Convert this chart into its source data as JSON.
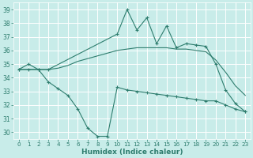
{
  "xlabel": "Humidex (Indice chaleur)",
  "background_color": "#c8ece9",
  "grid_color": "#ffffff",
  "line_color": "#2e7d6e",
  "x_all": [
    0,
    1,
    2,
    3,
    4,
    5,
    6,
    7,
    8,
    9,
    10,
    11,
    12,
    13,
    14,
    15,
    16,
    17,
    18,
    19,
    20,
    21,
    22,
    23
  ],
  "line_max_x": [
    0,
    1,
    2,
    3,
    10,
    11,
    12,
    13,
    14,
    15,
    16,
    17,
    18,
    19,
    20,
    21,
    22,
    23
  ],
  "line_max_y": [
    34.6,
    35.0,
    34.6,
    34.6,
    37.2,
    39.0,
    37.5,
    38.4,
    36.5,
    37.8,
    36.2,
    36.5,
    36.4,
    36.3,
    35.0,
    33.1,
    32.1,
    31.5
  ],
  "line_mid": [
    34.6,
    34.6,
    34.6,
    34.6,
    34.7,
    34.9,
    35.2,
    35.4,
    35.6,
    35.8,
    36.0,
    36.1,
    36.2,
    36.2,
    36.2,
    36.2,
    36.1,
    36.1,
    36.0,
    35.9,
    35.3,
    34.4,
    33.4,
    32.7
  ],
  "line_min": [
    34.6,
    34.6,
    34.6,
    33.7,
    33.2,
    32.7,
    31.7,
    30.3,
    29.7,
    29.7,
    33.3,
    33.1,
    33.0,
    32.9,
    32.8,
    32.7,
    32.6,
    32.5,
    32.4,
    32.3,
    32.3,
    32.0,
    31.7,
    31.5
  ],
  "ylim": [
    29.5,
    39.5
  ],
  "xlim": [
    -0.5,
    23.5
  ],
  "yticks": [
    30,
    31,
    32,
    33,
    34,
    35,
    36,
    37,
    38,
    39
  ],
  "xticks": [
    0,
    1,
    2,
    3,
    4,
    5,
    6,
    7,
    8,
    9,
    10,
    11,
    12,
    13,
    14,
    15,
    16,
    17,
    18,
    19,
    20,
    21,
    22,
    23
  ]
}
